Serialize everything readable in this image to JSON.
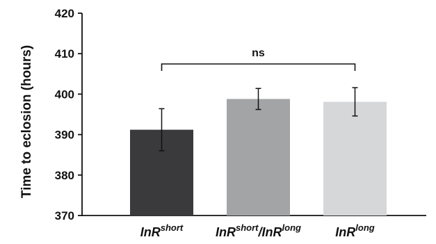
{
  "chart_data": {
    "type": "bar",
    "ylabel": "Time to eclosion (hours)",
    "xlabel": "",
    "ylim": [
      370,
      420
    ],
    "yticks": [
      370,
      380,
      390,
      400,
      410,
      420
    ],
    "grid": false,
    "categories": [
      {
        "base": "InR",
        "sup": "short",
        "mid": "",
        "base2": "",
        "sup2": ""
      },
      {
        "base": "InR",
        "sup": "short",
        "mid": "/",
        "base2": "InR",
        "sup2": "long"
      },
      {
        "base": "InR",
        "sup": "long",
        "mid": "",
        "base2": "",
        "sup2": ""
      }
    ],
    "values": [
      391.2,
      398.8,
      398.1
    ],
    "errors": [
      5.2,
      2.6,
      3.5
    ],
    "colors": [
      "#3a3a3c",
      "#a3a4a6",
      "#d6d7d9"
    ],
    "annotation": {
      "text": "ns",
      "from": 0,
      "to": 2
    }
  }
}
